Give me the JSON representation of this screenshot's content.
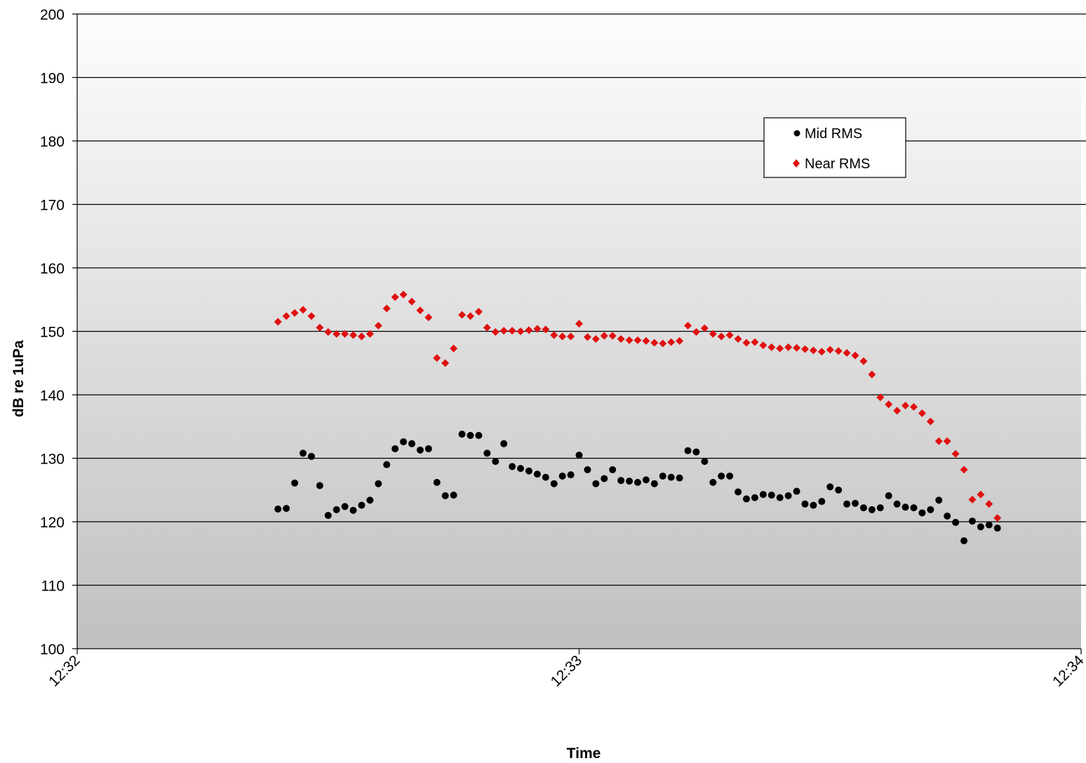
{
  "chart_data": {
    "type": "scatter",
    "title": "",
    "xlabel": "Time",
    "ylabel": "dB re 1uPa",
    "x_unit": "time",
    "xlim": [
      "12:32",
      "12:34"
    ],
    "ylim": [
      100,
      200
    ],
    "y_ticks": [
      100,
      110,
      120,
      130,
      140,
      150,
      160,
      170,
      180,
      190,
      200
    ],
    "x_ticks": [
      "12:32",
      "12:33",
      "12:34"
    ],
    "grid": "horizontal",
    "legend_position": "top-right",
    "series": [
      {
        "name": "Mid RMS",
        "marker": "circle",
        "color": "#000000",
        "points": [
          [
            "12:32:24",
            122.0
          ],
          [
            "12:32:25",
            122.1
          ],
          [
            "12:32:26",
            126.1
          ],
          [
            "12:32:27",
            130.8
          ],
          [
            "12:32:28",
            130.3
          ],
          [
            "12:32:29",
            125.7
          ],
          [
            "12:32:30",
            121.0
          ],
          [
            "12:32:31",
            121.9
          ],
          [
            "12:32:32",
            122.4
          ],
          [
            "12:32:33",
            121.8
          ],
          [
            "12:32:34",
            122.6
          ],
          [
            "12:32:35",
            123.4
          ],
          [
            "12:32:36",
            126.0
          ],
          [
            "12:32:37",
            129.0
          ],
          [
            "12:32:38",
            131.5
          ],
          [
            "12:32:39",
            132.6
          ],
          [
            "12:32:40",
            132.3
          ],
          [
            "12:32:41",
            131.3
          ],
          [
            "12:32:42",
            131.5
          ],
          [
            "12:32:43",
            126.2
          ],
          [
            "12:32:44",
            124.1
          ],
          [
            "12:32:45",
            124.2
          ],
          [
            "12:32:46",
            133.8
          ],
          [
            "12:32:47",
            133.6
          ],
          [
            "12:32:48",
            133.6
          ],
          [
            "12:32:49",
            130.8
          ],
          [
            "12:32:50",
            129.5
          ],
          [
            "12:32:51",
            132.3
          ],
          [
            "12:32:52",
            128.7
          ],
          [
            "12:32:53",
            128.4
          ],
          [
            "12:32:54",
            128.0
          ],
          [
            "12:32:55",
            127.5
          ],
          [
            "12:32:56",
            127.0
          ],
          [
            "12:32:57",
            126.0
          ],
          [
            "12:32:58",
            127.2
          ],
          [
            "12:32:59",
            127.4
          ],
          [
            "12:33:00",
            130.5
          ],
          [
            "12:33:01",
            128.2
          ],
          [
            "12:33:02",
            126.0
          ],
          [
            "12:33:03",
            126.8
          ],
          [
            "12:33:04",
            128.2
          ],
          [
            "12:33:05",
            126.5
          ],
          [
            "12:33:06",
            126.4
          ],
          [
            "12:33:07",
            126.2
          ],
          [
            "12:33:08",
            126.6
          ],
          [
            "12:33:09",
            126.0
          ],
          [
            "12:33:10",
            127.2
          ],
          [
            "12:33:11",
            127.0
          ],
          [
            "12:33:12",
            126.9
          ],
          [
            "12:33:13",
            131.2
          ],
          [
            "12:33:14",
            131.0
          ],
          [
            "12:33:15",
            129.5
          ],
          [
            "12:33:16",
            126.2
          ],
          [
            "12:33:17",
            127.2
          ],
          [
            "12:33:18",
            127.2
          ],
          [
            "12:33:19",
            124.7
          ],
          [
            "12:33:20",
            123.6
          ],
          [
            "12:33:21",
            123.8
          ],
          [
            "12:33:22",
            124.3
          ],
          [
            "12:33:23",
            124.2
          ],
          [
            "12:33:24",
            123.8
          ],
          [
            "12:33:25",
            124.1
          ],
          [
            "12:33:26",
            124.8
          ],
          [
            "12:33:27",
            122.8
          ],
          [
            "12:33:28",
            122.6
          ],
          [
            "12:33:29",
            123.2
          ],
          [
            "12:33:30",
            125.5
          ],
          [
            "12:33:31",
            125.0
          ],
          [
            "12:33:32",
            122.8
          ],
          [
            "12:33:33",
            122.9
          ],
          [
            "12:33:34",
            122.2
          ],
          [
            "12:33:35",
            121.9
          ],
          [
            "12:33:36",
            122.2
          ],
          [
            "12:33:37",
            124.1
          ],
          [
            "12:33:38",
            122.8
          ],
          [
            "12:33:39",
            122.3
          ],
          [
            "12:33:40",
            122.2
          ],
          [
            "12:33:41",
            121.4
          ],
          [
            "12:33:42",
            121.9
          ],
          [
            "12:33:43",
            123.4
          ],
          [
            "12:33:44",
            120.9
          ],
          [
            "12:33:45",
            119.9
          ],
          [
            "12:33:46",
            117.0
          ],
          [
            "12:33:47",
            120.1
          ],
          [
            "12:33:48",
            119.2
          ],
          [
            "12:33:49",
            119.5
          ],
          [
            "12:33:50",
            119.0
          ]
        ]
      },
      {
        "name": "Near RMS",
        "marker": "diamond",
        "color": "#e01010",
        "points": [
          [
            "12:32:24",
            151.5
          ],
          [
            "12:32:25",
            152.4
          ],
          [
            "12:32:26",
            152.9
          ],
          [
            "12:32:27",
            153.4
          ],
          [
            "12:32:28",
            152.4
          ],
          [
            "12:32:29",
            150.6
          ],
          [
            "12:32:30",
            149.9
          ],
          [
            "12:32:31",
            149.6
          ],
          [
            "12:32:32",
            149.6
          ],
          [
            "12:32:33",
            149.4
          ],
          [
            "12:32:34",
            149.2
          ],
          [
            "12:32:35",
            149.6
          ],
          [
            "12:32:36",
            150.9
          ],
          [
            "12:32:37",
            153.6
          ],
          [
            "12:32:38",
            155.4
          ],
          [
            "12:32:39",
            155.8
          ],
          [
            "12:32:40",
            154.7
          ],
          [
            "12:32:41",
            153.3
          ],
          [
            "12:32:42",
            152.2
          ],
          [
            "12:32:43",
            145.8
          ],
          [
            "12:32:44",
            145.0
          ],
          [
            "12:32:45",
            147.3
          ],
          [
            "12:32:46",
            152.6
          ],
          [
            "12:32:47",
            152.4
          ],
          [
            "12:32:48",
            153.1
          ],
          [
            "12:32:49",
            150.6
          ],
          [
            "12:32:50",
            149.9
          ],
          [
            "12:32:51",
            150.1
          ],
          [
            "12:32:52",
            150.1
          ],
          [
            "12:32:53",
            150.0
          ],
          [
            "12:32:54",
            150.2
          ],
          [
            "12:32:55",
            150.4
          ],
          [
            "12:32:56",
            150.3
          ],
          [
            "12:32:57",
            149.4
          ],
          [
            "12:32:58",
            149.2
          ],
          [
            "12:32:59",
            149.2
          ],
          [
            "12:33:00",
            151.2
          ],
          [
            "12:33:01",
            149.1
          ],
          [
            "12:33:02",
            148.8
          ],
          [
            "12:33:03",
            149.3
          ],
          [
            "12:33:04",
            149.3
          ],
          [
            "12:33:05",
            148.8
          ],
          [
            "12:33:06",
            148.6
          ],
          [
            "12:33:07",
            148.6
          ],
          [
            "12:33:08",
            148.5
          ],
          [
            "12:33:09",
            148.2
          ],
          [
            "12:33:10",
            148.1
          ],
          [
            "12:33:11",
            148.3
          ],
          [
            "12:33:12",
            148.5
          ],
          [
            "12:33:13",
            150.9
          ],
          [
            "12:33:14",
            149.9
          ],
          [
            "12:33:15",
            150.5
          ],
          [
            "12:33:16",
            149.6
          ],
          [
            "12:33:17",
            149.2
          ],
          [
            "12:33:18",
            149.4
          ],
          [
            "12:33:19",
            148.8
          ],
          [
            "12:33:20",
            148.2
          ],
          [
            "12:33:21",
            148.3
          ],
          [
            "12:33:22",
            147.8
          ],
          [
            "12:33:23",
            147.5
          ],
          [
            "12:33:24",
            147.3
          ],
          [
            "12:33:25",
            147.5
          ],
          [
            "12:33:26",
            147.4
          ],
          [
            "12:33:27",
            147.2
          ],
          [
            "12:33:28",
            147.0
          ],
          [
            "12:33:29",
            146.8
          ],
          [
            "12:33:30",
            147.1
          ],
          [
            "12:33:31",
            146.9
          ],
          [
            "12:33:32",
            146.6
          ],
          [
            "12:33:33",
            146.2
          ],
          [
            "12:33:34",
            145.3
          ],
          [
            "12:33:35",
            143.2
          ],
          [
            "12:33:36",
            139.6
          ],
          [
            "12:33:37",
            138.5
          ],
          [
            "12:33:38",
            137.5
          ],
          [
            "12:33:39",
            138.3
          ],
          [
            "12:33:40",
            138.1
          ],
          [
            "12:33:41",
            137.1
          ],
          [
            "12:33:42",
            135.8
          ],
          [
            "12:33:43",
            132.7
          ],
          [
            "12:33:44",
            132.7
          ],
          [
            "12:33:45",
            130.7
          ],
          [
            "12:33:46",
            128.2
          ],
          [
            "12:33:47",
            123.5
          ],
          [
            "12:33:48",
            124.3
          ],
          [
            "12:33:49",
            122.8
          ],
          [
            "12:33:50",
            120.6
          ]
        ]
      }
    ]
  },
  "legend": {
    "items": [
      {
        "label": "Mid RMS",
        "marker": "circle",
        "color": "#000000"
      },
      {
        "label": "Near RMS",
        "marker": "diamond",
        "color": "#e01010"
      }
    ]
  },
  "axis": {
    "x_title": "Time",
    "y_title": "dB re 1uPa"
  },
  "colors": {
    "plot_bg_top": "#fdfdfd",
    "plot_bg_bottom": "#c0c0c0",
    "grid": "#000000"
  }
}
